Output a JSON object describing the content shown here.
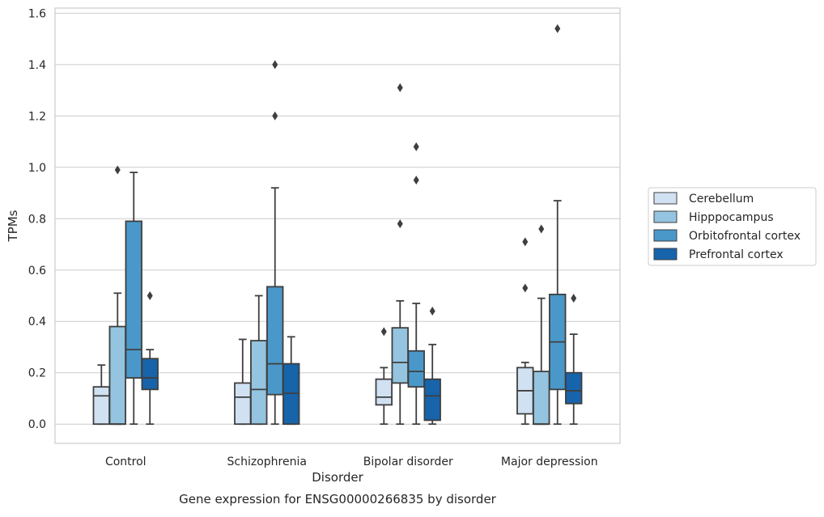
{
  "chart_data": {
    "type": "boxplot",
    "title": "Gene expression for ENSG00000266835 by disorder",
    "xlabel": "Disorder",
    "ylabel": "TPMs",
    "ylim": [
      -0.075,
      1.62
    ],
    "yticks": [
      0.0,
      0.2,
      0.4,
      0.6,
      0.8,
      1.0,
      1.2,
      1.4,
      1.6
    ],
    "ytick_labels": [
      "0.0",
      "0.2",
      "0.4",
      "0.6",
      "0.8",
      "1.0",
      "1.2",
      "1.4",
      "1.6"
    ],
    "grid": "horizontal",
    "legend_position": "outside-right",
    "categories": [
      "Control",
      "Schizophrenia",
      "Bipolar disorder",
      "Major depression"
    ],
    "series": [
      {
        "name": "Cerebellum",
        "color": "#d0e1f2",
        "boxes": [
          {
            "whislo": 0.0,
            "q1": 0.0,
            "med": 0.11,
            "q3": 0.145,
            "whishi": 0.23,
            "fliers": []
          },
          {
            "whislo": 0.0,
            "q1": 0.0,
            "med": 0.105,
            "q3": 0.16,
            "whishi": 0.33,
            "fliers": []
          },
          {
            "whislo": 0.0,
            "q1": 0.075,
            "med": 0.105,
            "q3": 0.175,
            "whishi": 0.22,
            "fliers": [
              0.36
            ]
          },
          {
            "whislo": 0.0,
            "q1": 0.04,
            "med": 0.13,
            "q3": 0.22,
            "whishi": 0.24,
            "fliers": [
              0.53,
              0.71
            ]
          }
        ]
      },
      {
        "name": "Hipppocampus",
        "color": "#94c4df",
        "boxes": [
          {
            "whislo": 0.0,
            "q1": 0.0,
            "med": 0.0,
            "q3": 0.38,
            "whishi": 0.51,
            "fliers": [
              0.99
            ]
          },
          {
            "whislo": 0.0,
            "q1": 0.0,
            "med": 0.135,
            "q3": 0.325,
            "whishi": 0.5,
            "fliers": []
          },
          {
            "whislo": 0.0,
            "q1": 0.16,
            "med": 0.24,
            "q3": 0.375,
            "whishi": 0.48,
            "fliers": [
              0.78,
              1.31
            ]
          },
          {
            "whislo": 0.0,
            "q1": 0.0,
            "med": 0.0,
            "q3": 0.205,
            "whishi": 0.49,
            "fliers": [
              0.76
            ]
          }
        ]
      },
      {
        "name": "Orbitofrontal cortex",
        "color": "#4a98c9",
        "boxes": [
          {
            "whislo": 0.0,
            "q1": 0.18,
            "med": 0.29,
            "q3": 0.79,
            "whishi": 0.98,
            "fliers": []
          },
          {
            "whislo": 0.0,
            "q1": 0.115,
            "med": 0.235,
            "q3": 0.535,
            "whishi": 0.92,
            "fliers": [
              1.2,
              1.4
            ]
          },
          {
            "whislo": 0.0,
            "q1": 0.145,
            "med": 0.205,
            "q3": 0.285,
            "whishi": 0.47,
            "fliers": [
              0.95,
              1.08
            ]
          },
          {
            "whislo": 0.0,
            "q1": 0.135,
            "med": 0.32,
            "q3": 0.505,
            "whishi": 0.87,
            "fliers": [
              1.54
            ]
          }
        ]
      },
      {
        "name": "Prefrontal cortex",
        "color": "#1764ab",
        "boxes": [
          {
            "whislo": 0.0,
            "q1": 0.135,
            "med": 0.18,
            "q3": 0.255,
            "whishi": 0.29,
            "fliers": [
              0.5
            ]
          },
          {
            "whislo": 0.0,
            "q1": 0.0,
            "med": 0.12,
            "q3": 0.235,
            "whishi": 0.34,
            "fliers": []
          },
          {
            "whislo": 0.0,
            "q1": 0.015,
            "med": 0.11,
            "q3": 0.175,
            "whishi": 0.31,
            "fliers": [
              0.44
            ]
          },
          {
            "whislo": 0.0,
            "q1": 0.08,
            "med": 0.13,
            "q3": 0.2,
            "whishi": 0.35,
            "fliers": [
              0.49
            ]
          }
        ]
      }
    ]
  }
}
